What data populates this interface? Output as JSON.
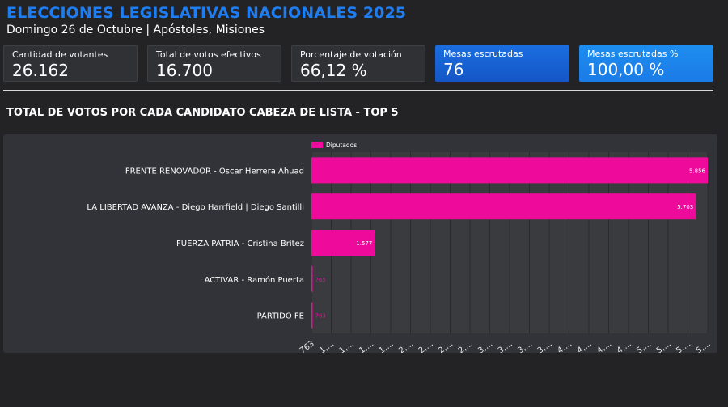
{
  "header": {
    "title": "ELECCIONES LEGISLATIVAS NACIONALES 2025",
    "subtitle": "Domingo 26 de Octubre | Apóstoles, Misiones"
  },
  "cards": [
    {
      "label": "Cantidad de votantes",
      "value": "26.162"
    },
    {
      "label": "Total de votos efectivos",
      "value": "16.700"
    },
    {
      "label": "Porcentaje de votación",
      "value": "66,12 %"
    },
    {
      "label": "Mesas escrutadas",
      "value": "76"
    },
    {
      "label": "Mesas escrutadas %",
      "value": "100,00 %"
    }
  ],
  "section": {
    "title": "TOTAL DE VOTOS POR CADA CANDIDATO CABEZA DE LISTA - TOP 5"
  },
  "colors": {
    "title": "#1e7df0",
    "bar": "#ee0a9a",
    "panel": "#313338",
    "plot": "#3a3b3e"
  },
  "chart_data": {
    "type": "bar",
    "orientation": "horizontal",
    "legend": [
      "Diputados"
    ],
    "legend_position": "top-left",
    "categories": [
      "FRENTE RENOVADOR - Oscar Herrera Ahuad",
      "LA LIBERTAD AVANZA - Diego Harrfield | Diego Santilli",
      "FUERZA PATRIA - Cristina Britez",
      "ACTIVAR - Ramón Puerta",
      "PARTIDO FE"
    ],
    "values": [
      5856,
      5703,
      1577,
      765,
      763
    ],
    "value_labels": [
      "5.856",
      "5.703",
      "1.577",
      "765",
      "763"
    ],
    "xlim": [
      763,
      5856
    ],
    "x_tick_labels": [
      "763",
      "1,...",
      "1,...",
      "1,...",
      "1,...",
      "2,...",
      "2,...",
      "2,...",
      "2,...",
      "3,...",
      "3,...",
      "3,...",
      "3,...",
      "4,...",
      "4,...",
      "4,...",
      "4,...",
      "5,...",
      "5,...",
      "5,...",
      "5,..."
    ],
    "series": [
      {
        "name": "Diputados",
        "values": [
          5856,
          5703,
          1577,
          765,
          763
        ]
      }
    ]
  }
}
